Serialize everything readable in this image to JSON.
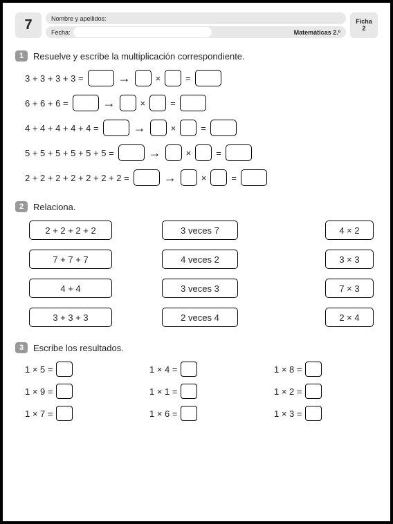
{
  "header": {
    "page_number": "7",
    "name_label": "Nombre y apellidos:",
    "date_label": "Fecha:",
    "subject": "Matemáticas 2.º",
    "ficha_label": "Ficha",
    "ficha_number": "2"
  },
  "section1": {
    "badge": "1",
    "title": "Resuelve y escribe la multiplicación correspondiente.",
    "rows": [
      "3 + 3 + 3 + 3 =",
      "6 + 6 + 6 =",
      "4 + 4 + 4 + 4 + 4 =",
      "5 + 5 + 5 + 5 + 5 + 5 =",
      "2 + 2 + 2 + 2 + 2 + 2 + 2 ="
    ],
    "mult_sign": "×",
    "eq_sign": "="
  },
  "section2": {
    "badge": "2",
    "title": "Relaciona.",
    "col_a": [
      "2 + 2 + 2 + 2",
      "7 + 7 + 7",
      "4 + 4",
      "3 + 3 + 3"
    ],
    "col_b": [
      "3 veces 7",
      "4 veces 2",
      "3 veces 3",
      "2 veces 4"
    ],
    "col_c": [
      "4 × 2",
      "3 × 3",
      "7 × 3",
      "2 × 4"
    ]
  },
  "section3": {
    "badge": "3",
    "title": "Escribe los resultados.",
    "items": [
      "1 × 5 =",
      "1 × 4 =",
      "1 × 8 =",
      "1 × 9 =",
      "1 × 1 =",
      "1 × 2 =",
      "1 × 7 =",
      "1 × 6 =",
      "1 × 3 ="
    ]
  },
  "style": {
    "border_color": "#000000",
    "badge_bg": "#999999",
    "header_bg": "#e8e8e8",
    "border_radius": 5
  }
}
